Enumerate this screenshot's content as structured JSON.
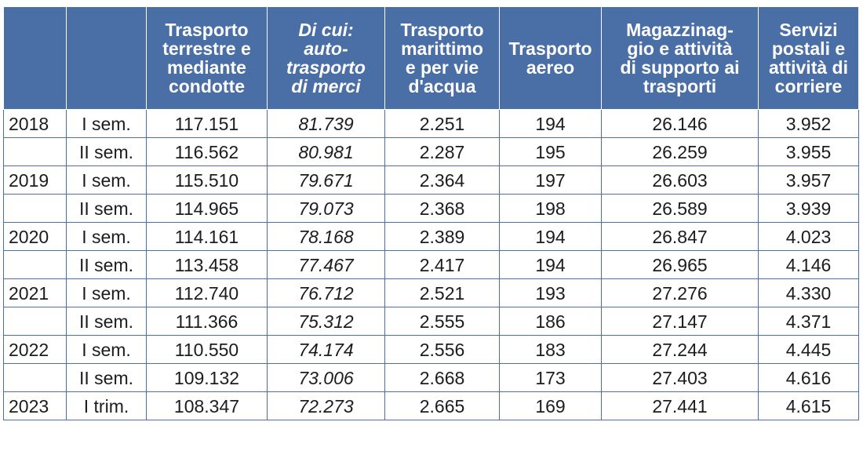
{
  "table": {
    "headers": [
      "",
      "",
      "Trasporto terrestre e mediante condotte",
      "Di cui: auto-trasporto di merci",
      "Trasporto marittimo e per vie d'acqua",
      "Trasporto aereo",
      "Magazzinag-gio e attività di supporto ai trasporti",
      "Servizi postali e attività di corriere"
    ],
    "header_lines": {
      "h2": [
        "Trasporto",
        "terrestre e",
        "mediante",
        "condotte"
      ],
      "h3": [
        "Di cui:",
        "auto-",
        "trasporto",
        "di merci"
      ],
      "h4": [
        "Trasporto",
        "marittimo",
        "e per vie",
        "d'acqua"
      ],
      "h5": [
        "Trasporto",
        "aereo"
      ],
      "h6": [
        "Magazzinag-",
        "gio e attività",
        "di supporto ai",
        "trasporti"
      ],
      "h7": [
        "Servizi",
        "postali e",
        "attività di",
        "corriere"
      ]
    },
    "rows": [
      {
        "year": "2018",
        "period": "I sem.",
        "c1": "117.151",
        "c2": "81.739",
        "c3": "2.251",
        "c4": "194",
        "c5": "26.146",
        "c6": "3.952"
      },
      {
        "year": "",
        "period": "II sem.",
        "c1": "116.562",
        "c2": "80.981",
        "c3": "2.287",
        "c4": "195",
        "c5": "26.259",
        "c6": "3.955"
      },
      {
        "year": "2019",
        "period": "I sem.",
        "c1": "115.510",
        "c2": "79.671",
        "c3": "2.364",
        "c4": "197",
        "c5": "26.603",
        "c6": "3.957"
      },
      {
        "year": "",
        "period": "II sem.",
        "c1": "114.965",
        "c2": "79.073",
        "c3": "2.368",
        "c4": "198",
        "c5": "26.589",
        "c6": "3.939"
      },
      {
        "year": "2020",
        "period": "I sem.",
        "c1": "114.161",
        "c2": "78.168",
        "c3": "2.389",
        "c4": "194",
        "c5": "26.847",
        "c6": "4.023"
      },
      {
        "year": "",
        "period": "II sem.",
        "c1": "113.458",
        "c2": "77.467",
        "c3": "2.417",
        "c4": "194",
        "c5": "26.965",
        "c6": "4.146"
      },
      {
        "year": "2021",
        "period": "I sem.",
        "c1": "112.740",
        "c2": "76.712",
        "c3": "2.521",
        "c4": "193",
        "c5": "27.276",
        "c6": "4.330"
      },
      {
        "year": "",
        "period": "II sem.",
        "c1": "111.366",
        "c2": "75.312",
        "c3": "2.555",
        "c4": "186",
        "c5": "27.147",
        "c6": "4.371"
      },
      {
        "year": "2022",
        "period": "I sem.",
        "c1": "110.550",
        "c2": "74.174",
        "c3": "2.556",
        "c4": "183",
        "c5": "27.244",
        "c6": "4.445"
      },
      {
        "year": "",
        "period": "II sem.",
        "c1": "109.132",
        "c2": "73.006",
        "c3": "2.668",
        "c4": "173",
        "c5": "27.403",
        "c6": "4.616"
      },
      {
        "year": "2023",
        "period": "I trim.",
        "c1": "108.347",
        "c2": "72.273",
        "c3": "2.665",
        "c4": "169",
        "c5": "27.441",
        "c6": "4.615"
      }
    ]
  },
  "colors": {
    "header_bg": "#4a6ea6",
    "header_text": "#ffffff",
    "border": "#4a6ea6",
    "cell_text": "#1c1c1c"
  }
}
